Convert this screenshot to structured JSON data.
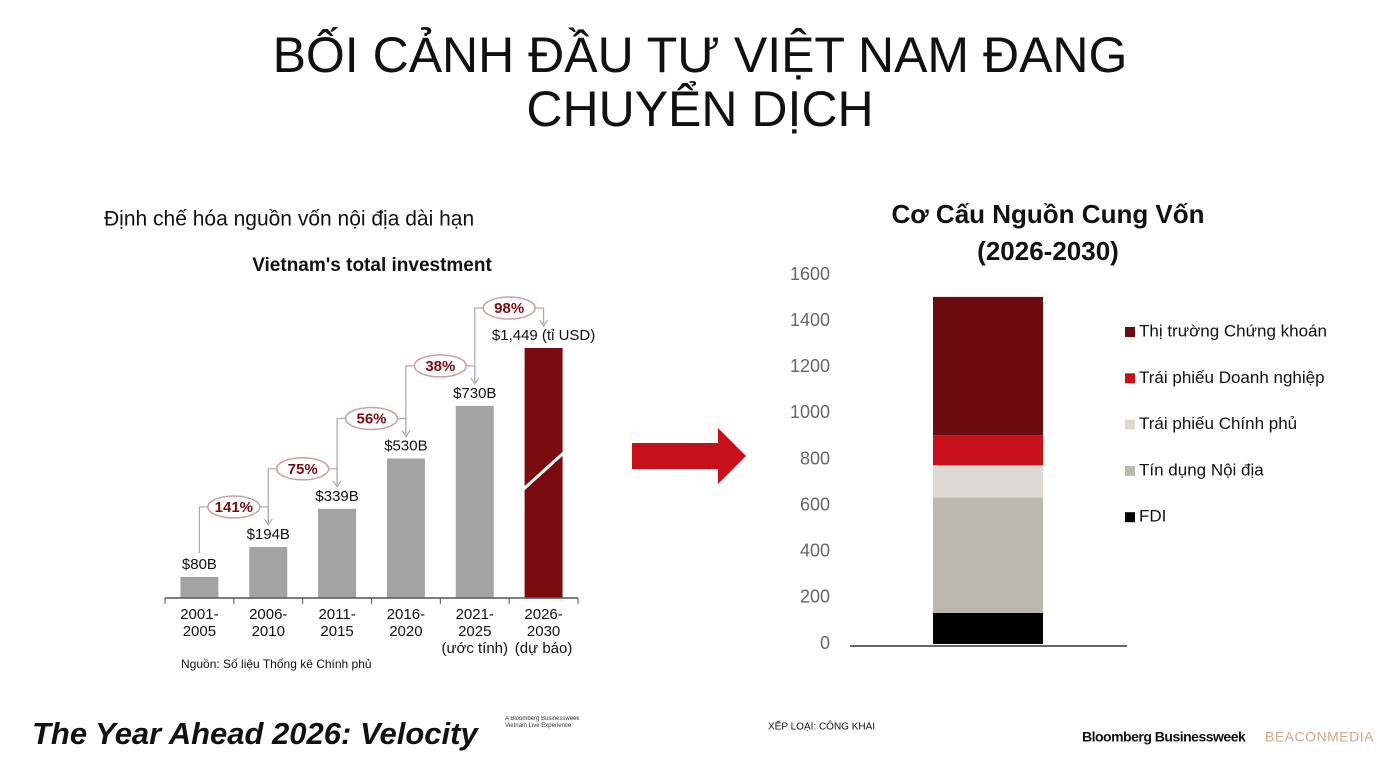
{
  "title": "BỐI CẢNH ĐẦU TƯ VIỆT NAM ĐANG\nCHUYỂN DỊCH",
  "left_heading": "Định chế hóa nguồn vốn nội địa dài hạn",
  "chart_data": [
    {
      "type": "bar",
      "title": "Vietnam's total investment",
      "categories": [
        "2001-\n2005",
        "2006-\n2010",
        "2011-\n2015",
        "2016-\n2020",
        "2021-\n2025\n(ước tính)",
        "2026-\n2030\n(dự báo)"
      ],
      "values": [
        80,
        194,
        339,
        530,
        730,
        1449
      ],
      "value_labels": [
        "$80B",
        "$194B",
        "$339B",
        "$530B",
        "$730B",
        "$1,449 (tỉ USD)"
      ],
      "colors": [
        "#a3a3a3",
        "#a3a3a3",
        "#a3a3a3",
        "#a3a3a3",
        "#a3a3a3",
        "#7a0c10"
      ],
      "ylim": [
        0,
        950
      ],
      "axis_break": true,
      "growth": {
        "values": [
          141,
          75,
          56,
          38,
          98
        ],
        "value_labels": [
          "141%",
          "75%",
          "56%",
          "38%",
          "98%"
        ],
        "color": "#7a0c10"
      },
      "source": "Nguồn: Số liệu Thống kê Chính phủ"
    },
    {
      "type": "stacked_bar",
      "title": "Cơ Cấu Nguồn Cung Vốn\n(2026-2030)",
      "categories": [
        null
      ],
      "series": [
        {
          "name": "FDI",
          "color": "#000000",
          "values": [
            135
          ]
        },
        {
          "name": "Tín dụng Nội địa",
          "color": "#bdb8ad",
          "values": [
            500
          ]
        },
        {
          "name": "Trái phiếu Chính phủ",
          "color": "#dddad6",
          "values": [
            140
          ]
        },
        {
          "name": "Trái phiếu Doanh nghiệp",
          "color": "#c8101a",
          "values": [
            130
          ]
        },
        {
          "name": "Thị trường Chứng khoán",
          "color": "#6b0d10",
          "values": [
            600
          ]
        }
      ],
      "ylim": [
        0,
        1600
      ],
      "yticks": [
        0,
        200,
        400,
        600,
        800,
        1000,
        1200,
        1400,
        1600
      ],
      "legend": "right"
    }
  ],
  "footer": {
    "event": "The Year Ahead 2026: Velocity",
    "event_note": "A Bloomberg Businessweek Vietnam Live Experience",
    "classification": "XẾP LOẠI: CÔNG KHAI",
    "brand": "Bloomberg Businessweek",
    "partner": "BEACONMEDIA"
  }
}
